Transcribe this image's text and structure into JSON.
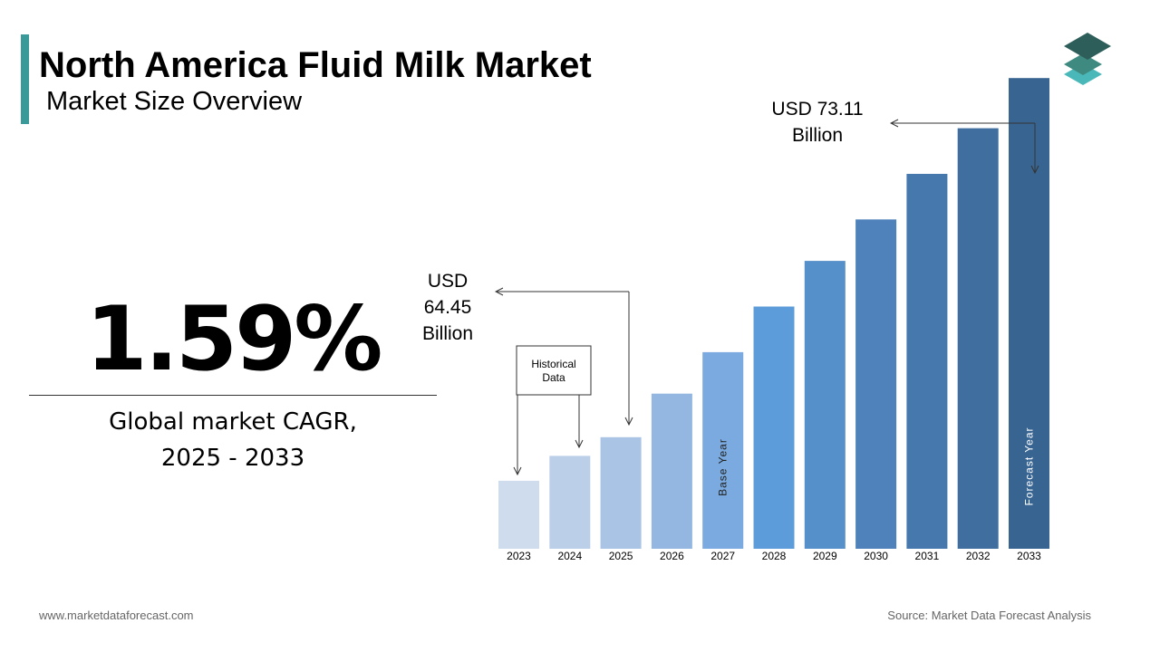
{
  "header": {
    "title": "North America Fluid Milk Market",
    "subtitle": "Market Size Overview"
  },
  "kpi": {
    "value": "1.59%",
    "caption_line1": "Global market CAGR,",
    "caption_line2": "2025 - 2033"
  },
  "colors": {
    "accent": "#3a9a9a",
    "logo_top": "#2e5e5a",
    "logo_mid": "#3f8a80",
    "logo_bottom": "#4ab8b8"
  },
  "chart_data": {
    "type": "bar",
    "categories": [
      "2023",
      "2024",
      "2025",
      "2026",
      "2027",
      "2028",
      "2029",
      "2030",
      "2031",
      "2032",
      "2033"
    ],
    "values": [
      63.4,
      64.0,
      64.45,
      65.5,
      66.5,
      67.6,
      68.7,
      69.7,
      70.8,
      71.9,
      73.11
    ],
    "colors": [
      "#cfdcee",
      "#bccfe9",
      "#a9c4e5",
      "#93b7e0",
      "#7aaadf",
      "#5d9cda",
      "#5690ca",
      "#4f82bb",
      "#4678ad",
      "#3f6e9f",
      "#386491"
    ],
    "bar_labels": {
      "2027": "Base Year",
      "2033": "Forecast Year"
    },
    "annotations": {
      "start": {
        "line1": "USD",
        "line2": "64.45",
        "line3": "Billion",
        "target": "2025"
      },
      "end": {
        "line1": "USD 73.11",
        "line2": "Billion",
        "target": "2033"
      },
      "historical": {
        "line1": "Historical",
        "line2": "Data",
        "targets": [
          "2023",
          "2024"
        ]
      }
    }
  },
  "footer": {
    "website": "www.marketdataforecast.com",
    "source": "Source: Market Data Forecast Analysis"
  }
}
